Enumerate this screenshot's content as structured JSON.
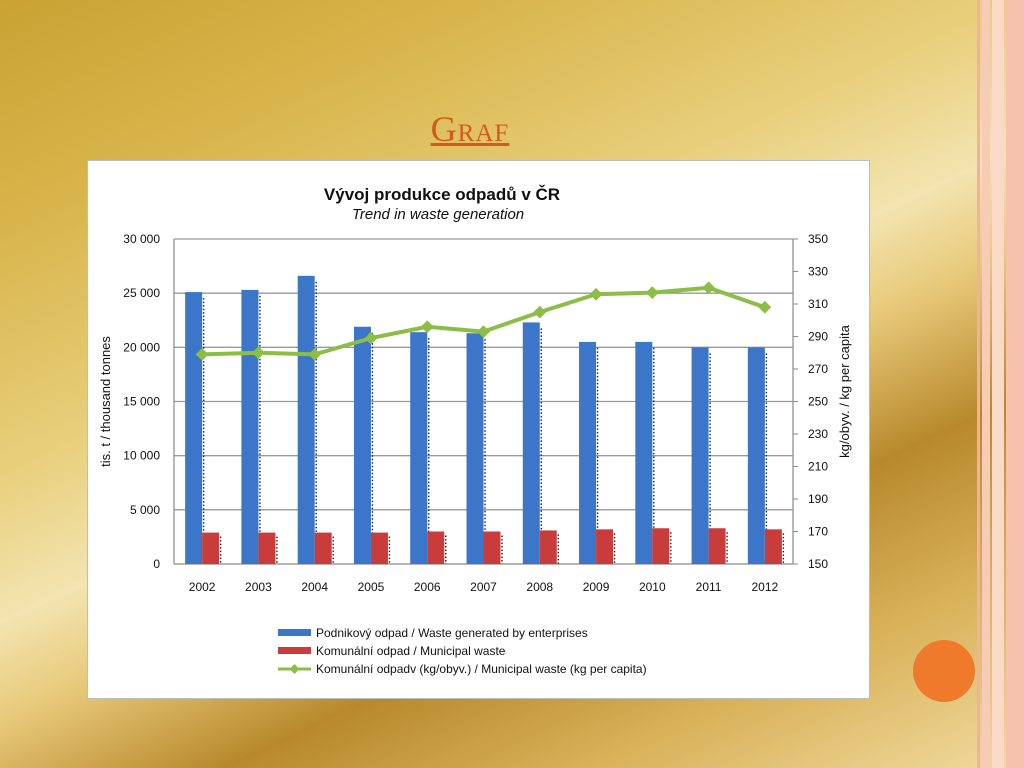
{
  "slide": {
    "title": "Graf"
  },
  "colors": {
    "accent_title": "#d35a1f",
    "circle": "#f07a2c",
    "enterprises": "#3b76c9",
    "municipal": "#c83c3c",
    "per_capita": "#8bbd47"
  },
  "chart_data": {
    "type": "bar",
    "title": "Vývoj produkce odpadů v ČR",
    "subtitle": "Trend in waste generation",
    "categories": [
      "2002",
      "2003",
      "2004",
      "2005",
      "2006",
      "2007",
      "2008",
      "2009",
      "2010",
      "2011",
      "2012"
    ],
    "ylabel": "tis. t / thousand tonnes",
    "y2label": "kg/obyv. / kg per capita",
    "ylim": [
      0,
      30000
    ],
    "y2lim": [
      150,
      350
    ],
    "yticks": [
      "0",
      "5 000",
      "10 000",
      "15 000",
      "20 000",
      "25 000",
      "30 000"
    ],
    "y2ticks": [
      "150",
      "170",
      "190",
      "210",
      "230",
      "250",
      "270",
      "290",
      "310",
      "330",
      "350"
    ],
    "grid": true,
    "legend_position": "bottom",
    "series": [
      {
        "name": "Podnikový odpad  /  Waste generated by enterprises",
        "kind": "bar",
        "axis": "left",
        "values": [
          25100,
          25300,
          26600,
          21900,
          21400,
          21300,
          22300,
          20500,
          20500,
          20000,
          20000
        ]
      },
      {
        "name": "Komunální odpad  /  Municipal waste",
        "kind": "bar",
        "axis": "left",
        "values": [
          2900,
          2900,
          2900,
          2900,
          3000,
          3000,
          3100,
          3200,
          3300,
          3300,
          3200
        ]
      },
      {
        "name": "Komunální odpadv (kg/obyv.)  /  Municipal waste (kg per capita)",
        "kind": "line",
        "axis": "right",
        "values": [
          279,
          280,
          279,
          289,
          296,
          293,
          305,
          316,
          317,
          320,
          308
        ]
      }
    ]
  }
}
